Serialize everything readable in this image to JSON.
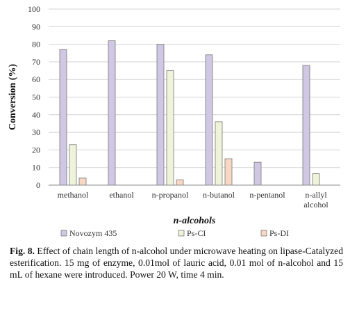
{
  "chart_data": {
    "type": "bar",
    "categories": [
      "methanol",
      "ethanol",
      "n-propanol",
      "n-butanol",
      "n-pentanol",
      [
        "n-allyl",
        "alcohol"
      ]
    ],
    "series": [
      {
        "name": "Novozym 435",
        "values": [
          77,
          82,
          80,
          74,
          13,
          68
        ],
        "color": "#cfc8e4"
      },
      {
        "name": "Ps-CI",
        "values": [
          23,
          null,
          65,
          36,
          null,
          6.5
        ],
        "color": "#eef3d9"
      },
      {
        "name": "Ps-DI",
        "values": [
          4,
          null,
          3,
          15,
          null,
          null
        ],
        "color": "#f8d8c2"
      }
    ],
    "ylabel": "Conversion (%)",
    "xlabel": "n-alcohols",
    "yticks": [
      0,
      10,
      20,
      30,
      40,
      50,
      60,
      70,
      80,
      90,
      100
    ],
    "ylim": [
      0,
      100
    ],
    "grid": true,
    "legend_position": "bottom"
  },
  "caption": {
    "label": "Fig. 8.",
    "text": "Effect of chain length of n-alcohol under microwave heating on lipase-Catalyzed esterification. 15 mg of enzyme, 0.01mol of lauric acid, 0.01 mol of n-alcohol and 15 mL of hexane were introduced. Power 20 W, time 4 min."
  }
}
